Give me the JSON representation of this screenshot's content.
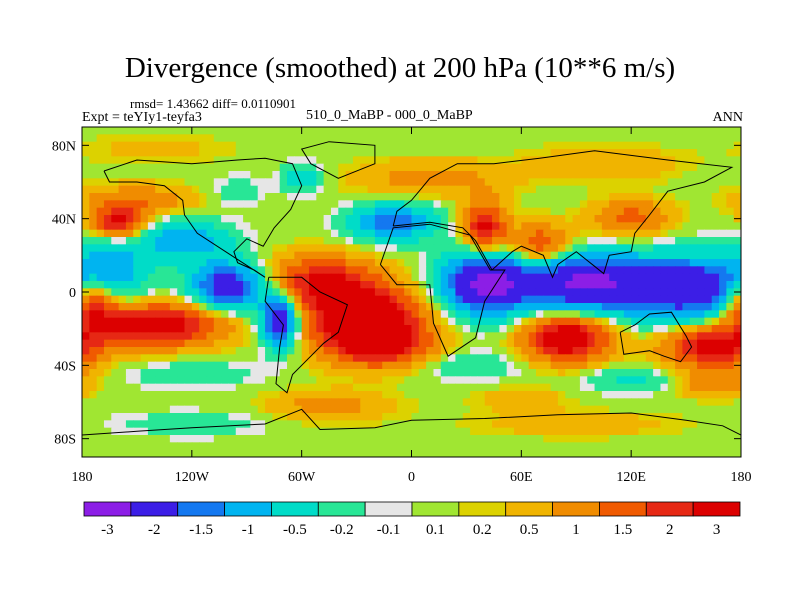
{
  "title": "Divergence (smoothed) at 200 hPa (10**6 m/s)",
  "stats": {
    "rmsd_label": "rmsd= 1.43662 diff= 0.0110901",
    "experiment_label": "Expt = teYIy1-teyfa3",
    "case_label": "510_0_MaBP - 000_0_MaBP",
    "period_label": "ANN"
  },
  "chart_data": {
    "type": "heatmap",
    "projection": "cylindrical-equidistant",
    "x_range": [
      -180,
      180
    ],
    "y_range": [
      -90,
      90
    ],
    "x_ticks": [
      {
        "value": -180,
        "label": "180"
      },
      {
        "value": -120,
        "label": "120W"
      },
      {
        "value": -60,
        "label": "60W"
      },
      {
        "value": 0,
        "label": "0"
      },
      {
        "value": 60,
        "label": "60E"
      },
      {
        "value": 120,
        "label": "120E"
      },
      {
        "value": 180,
        "label": "180"
      }
    ],
    "y_ticks": [
      {
        "value": 80,
        "label": "80N"
      },
      {
        "value": 40,
        "label": "40N"
      },
      {
        "value": 0,
        "label": "0"
      },
      {
        "value": -40,
        "label": "40S"
      },
      {
        "value": -80,
        "label": "80S"
      }
    ],
    "contour_levels": [
      "-3",
      "-2",
      "-1.5",
      "-1",
      "-0.5",
      "-0.2",
      "-0.1",
      "0.1",
      "0.2",
      "0.5",
      "1",
      "1.5",
      "2",
      "3"
    ],
    "colors": [
      "#8c1ee6",
      "#3c1ee6",
      "#1478f0",
      "#00b4f0",
      "#00dcc8",
      "#28e696",
      "#e6e6e6",
      "#a0e632",
      "#dcd200",
      "#f0b400",
      "#f08c00",
      "#f05a00",
      "#e62814",
      "#dc0000"
    ],
    "features": [
      {
        "lon": 40,
        "lat": 5,
        "value": -3.2,
        "sx": 16,
        "sy": 12
      },
      {
        "lon": 92,
        "lat": 5,
        "value": -3.1,
        "sx": 24,
        "sy": 11
      },
      {
        "lon": 152,
        "lat": 2,
        "value": -2.8,
        "sx": 26,
        "sy": 12
      },
      {
        "lon": -100,
        "lat": 3,
        "value": -2.6,
        "sx": 14,
        "sy": 9
      },
      {
        "lon": -72,
        "lat": -15,
        "value": -3.0,
        "sx": 7,
        "sy": 10
      },
      {
        "lon": -10,
        "lat": 38,
        "value": -1.8,
        "sx": 16,
        "sy": 7
      },
      {
        "lon": -125,
        "lat": 28,
        "value": -1.4,
        "sx": 18,
        "sy": 8
      },
      {
        "lon": -165,
        "lat": 12,
        "value": -1.2,
        "sx": 14,
        "sy": 12
      },
      {
        "lon": 70,
        "lat": 25,
        "value": 1.7,
        "sx": 12,
        "sy": 8
      },
      {
        "lon": 40,
        "lat": 35,
        "value": 2.2,
        "sx": 8,
        "sy": 10
      },
      {
        "lon": -160,
        "lat": 38,
        "value": 2.2,
        "sx": 10,
        "sy": 6
      },
      {
        "lon": -175,
        "lat": -5,
        "value": 2.4,
        "sx": 10,
        "sy": 10
      },
      {
        "lon": -140,
        "lat": -18,
        "value": 2.6,
        "sx": 25,
        "sy": 8
      },
      {
        "lon": -50,
        "lat": 5,
        "value": 2.0,
        "sx": 20,
        "sy": 10
      },
      {
        "lon": -25,
        "lat": -15,
        "value": 3.3,
        "sx": 20,
        "sy": 12
      },
      {
        "lon": 85,
        "lat": -25,
        "value": 2.8,
        "sx": 16,
        "sy": 9
      },
      {
        "lon": 165,
        "lat": -30,
        "value": 2.4,
        "sx": 18,
        "sy": 8
      },
      {
        "lon": -15,
        "lat": -30,
        "value": 1.6,
        "sx": 20,
        "sy": 8
      },
      {
        "lon": -150,
        "lat": 50,
        "value": 0.9,
        "sx": 22,
        "sy": 6
      },
      {
        "lon": 120,
        "lat": 40,
        "value": 1.2,
        "sx": 15,
        "sy": 7
      },
      {
        "lon": 10,
        "lat": 62,
        "value": 0.7,
        "sx": 30,
        "sy": 7
      },
      {
        "lon": -60,
        "lat": 62,
        "value": -0.8,
        "sx": 8,
        "sy": 6
      },
      {
        "lon": -95,
        "lat": 55,
        "value": -0.4,
        "sx": 10,
        "sy": 6
      },
      {
        "lon": 105,
        "lat": 70,
        "value": 0.5,
        "sx": 28,
        "sy": 7
      },
      {
        "lon": -140,
        "lat": 78,
        "value": 0.3,
        "sx": 30,
        "sy": 6
      },
      {
        "lon": 30,
        "lat": -40,
        "value": -0.5,
        "sx": 22,
        "sy": 6
      },
      {
        "lon": 120,
        "lat": -48,
        "value": -0.6,
        "sx": 20,
        "sy": 5
      },
      {
        "lon": -120,
        "lat": -45,
        "value": -0.5,
        "sx": 24,
        "sy": 5
      },
      {
        "lon": 165,
        "lat": -50,
        "value": 0.9,
        "sx": 14,
        "sy": 5
      },
      {
        "lon": -45,
        "lat": -62,
        "value": 0.7,
        "sx": 24,
        "sy": 6
      },
      {
        "lon": 90,
        "lat": -72,
        "value": 0.4,
        "sx": 40,
        "sy": 5
      },
      {
        "lon": -120,
        "lat": -72,
        "value": -0.4,
        "sx": 30,
        "sy": 5
      },
      {
        "lon": 60,
        "lat": -58,
        "value": 0.4,
        "sx": 18,
        "sy": 5
      }
    ],
    "coast_polylines": [
      [
        [
          -168,
          66
        ],
        [
          -150,
          72
        ],
        [
          -120,
          70
        ],
        [
          -95,
          72
        ],
        [
          -80,
          73
        ],
        [
          -65,
          70
        ],
        [
          -60,
          58
        ],
        [
          -66,
          45
        ],
        [
          -75,
          35
        ],
        [
          -81,
          25
        ],
        [
          -90,
          29
        ],
        [
          -97,
          22
        ],
        [
          -95,
          16
        ],
        [
          -86,
          12
        ],
        [
          -80,
          8
        ],
        [
          -117,
          32
        ],
        [
          -124,
          42
        ],
        [
          -125,
          50
        ],
        [
          -135,
          58
        ],
        [
          -150,
          60
        ],
        [
          -165,
          60
        ],
        [
          -168,
          66
        ]
      ],
      [
        [
          -78,
          8
        ],
        [
          -60,
          8
        ],
        [
          -50,
          0
        ],
        [
          -35,
          -7
        ],
        [
          -40,
          -22
        ],
        [
          -48,
          -28
        ],
        [
          -58,
          -38
        ],
        [
          -65,
          -45
        ],
        [
          -68,
          -55
        ],
        [
          -74,
          -50
        ],
        [
          -72,
          -30
        ],
        [
          -70,
          -18
        ],
        [
          -80,
          -5
        ],
        [
          -78,
          8
        ]
      ],
      [
        [
          -45,
          82
        ],
        [
          -20,
          80
        ],
        [
          -20,
          70
        ],
        [
          -40,
          62
        ],
        [
          -55,
          70
        ],
        [
          -60,
          78
        ],
        [
          -45,
          82
        ]
      ],
      [
        [
          -10,
          36
        ],
        [
          -8,
          44
        ],
        [
          0,
          50
        ],
        [
          5,
          56
        ],
        [
          10,
          62
        ],
        [
          25,
          70
        ],
        [
          45,
          70
        ],
        [
          70,
          73
        ],
        [
          100,
          77
        ],
        [
          140,
          72
        ],
        [
          175,
          68
        ],
        [
          160,
          60
        ],
        [
          140,
          55
        ],
        [
          130,
          42
        ],
        [
          122,
          32
        ],
        [
          120,
          22
        ],
        [
          108,
          20
        ],
        [
          105,
          10
        ],
        [
          100,
          14
        ],
        [
          95,
          18
        ],
        [
          90,
          22
        ],
        [
          80,
          15
        ],
        [
          77,
          8
        ],
        [
          72,
          20
        ],
        [
          60,
          25
        ],
        [
          55,
          22
        ],
        [
          44,
          12
        ],
        [
          35,
          28
        ],
        [
          28,
          35
        ],
        [
          10,
          38
        ],
        [
          -10,
          36
        ]
      ],
      [
        [
          -17,
          15
        ],
        [
          -10,
          35
        ],
        [
          10,
          37
        ],
        [
          32,
          31
        ],
        [
          43,
          12
        ],
        [
          51,
          12
        ],
        [
          40,
          -5
        ],
        [
          35,
          -25
        ],
        [
          20,
          -35
        ],
        [
          12,
          -17
        ],
        [
          10,
          4
        ],
        [
          -8,
          4
        ],
        [
          -17,
          15
        ]
      ],
      [
        [
          114,
          -22
        ],
        [
          122,
          -18
        ],
        [
          130,
          -12
        ],
        [
          142,
          -11
        ],
        [
          150,
          -24
        ],
        [
          153,
          -30
        ],
        [
          147,
          -38
        ],
        [
          138,
          -35
        ],
        [
          130,
          -32
        ],
        [
          116,
          -34
        ],
        [
          114,
          -22
        ]
      ],
      [
        [
          -180,
          -78
        ],
        [
          -150,
          -76
        ],
        [
          -120,
          -74
        ],
        [
          -80,
          -72
        ],
        [
          -60,
          -64
        ],
        [
          -50,
          -75
        ],
        [
          -20,
          -74
        ],
        [
          0,
          -70
        ],
        [
          40,
          -69
        ],
        [
          80,
          -67
        ],
        [
          120,
          -66
        ],
        [
          150,
          -70
        ],
        [
          170,
          -73
        ],
        [
          180,
          -78
        ]
      ]
    ]
  }
}
